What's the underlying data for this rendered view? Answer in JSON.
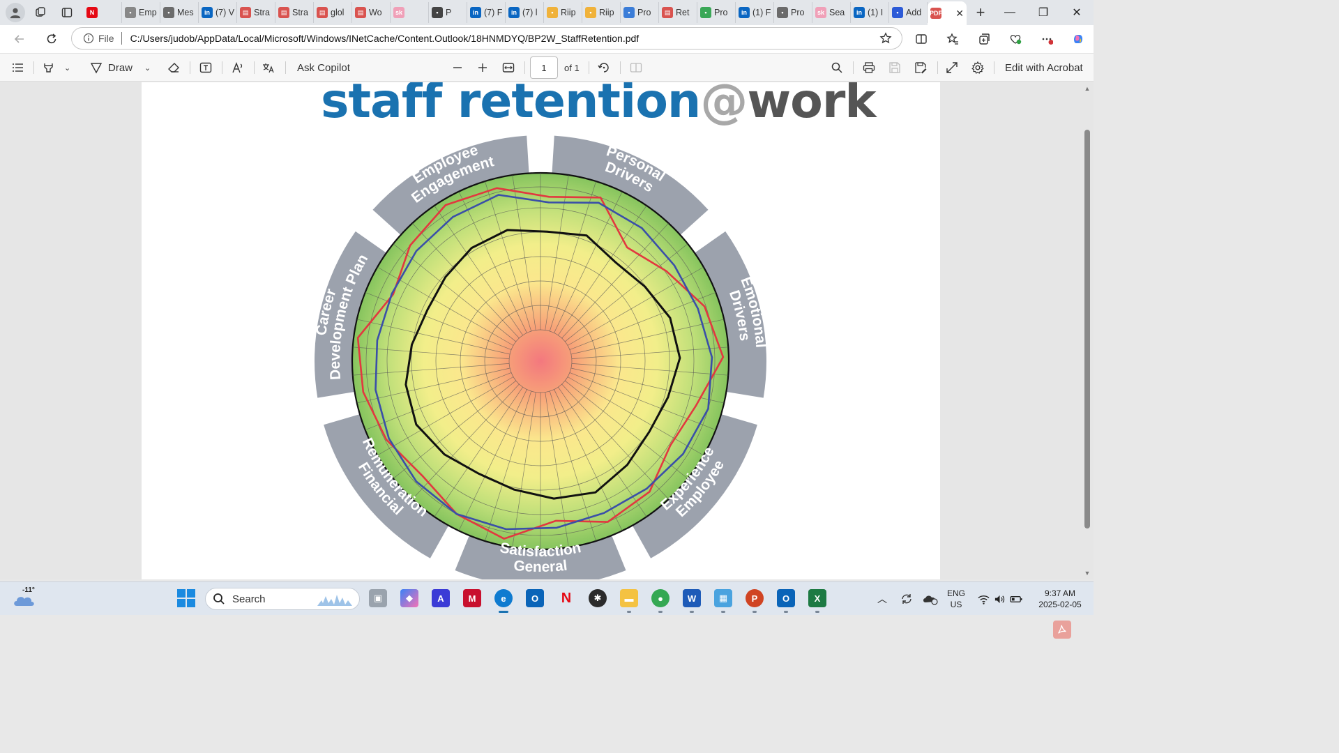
{
  "tabs": [
    {
      "label": "",
      "icon": "netflix-icon",
      "color": "#e50914"
    },
    {
      "label": "Emp",
      "icon": "chatgpt-icon",
      "color": "#888888"
    },
    {
      "label": "Mes",
      "icon": "gmail-icon",
      "color": "#6b6b6b"
    },
    {
      "label": "(7) V",
      "icon": "linkedin-icon",
      "color": "#0a66c2"
    },
    {
      "label": "Stra",
      "icon": "pdf-icon",
      "color": "#d9534f"
    },
    {
      "label": "Stra",
      "icon": "pdf-icon",
      "color": "#d9534f"
    },
    {
      "label": "glol",
      "icon": "pdf-icon",
      "color": "#d9534f"
    },
    {
      "label": "Wo",
      "icon": "pdf-icon",
      "color": "#d9534f"
    },
    {
      "label": "",
      "icon": "sk-icon",
      "color": "#f0a0b8"
    },
    {
      "label": "P",
      "icon": "p-icon",
      "color": "#444444"
    },
    {
      "label": "(7) F",
      "icon": "linkedin-icon",
      "color": "#0a66c2"
    },
    {
      "label": "(7) l",
      "icon": "linkedin-icon",
      "color": "#0a66c2"
    },
    {
      "label": "Riip",
      "icon": "riip-icon",
      "color": "#f0b23a"
    },
    {
      "label": "Riip",
      "icon": "riip-icon",
      "color": "#f0b23a"
    },
    {
      "label": "Pro",
      "icon": "bird-icon",
      "color": "#3b7dd8"
    },
    {
      "label": "Ret",
      "icon": "pdf-icon",
      "color": "#d9534f"
    },
    {
      "label": "Pro",
      "icon": "plus-green-icon",
      "color": "#3aa757"
    },
    {
      "label": "(1) F",
      "icon": "linkedin-icon",
      "color": "#0a66c2"
    },
    {
      "label": "Pro",
      "icon": "loop-icon",
      "color": "#6b6b6b"
    },
    {
      "label": "Sea",
      "icon": "sk-icon",
      "color": "#f0a0b8"
    },
    {
      "label": "(1) I",
      "icon": "linkedin-icon",
      "color": "#0a66c2"
    },
    {
      "label": "Add",
      "icon": "adobe-icon",
      "color": "#2d5bd7"
    }
  ],
  "active_tab": {
    "label": "",
    "icon": "pdf-icon",
    "color": "#d9534f"
  },
  "address": {
    "scheme_label": "File",
    "url": "C:/Users/judob/AppData/Local/Microsoft/Windows/INetCache/Content.Outlook/18HNMDYQ/BP2W_StaffRetention.pdf"
  },
  "toolbar": {
    "draw_label": "Draw",
    "copilot_label": "Ask Copilot",
    "page_value": "1",
    "page_of": "of 1",
    "acrobat_label": "Edit with Acrobat"
  },
  "document": {
    "title_part1": "staff retention",
    "title_at": "@",
    "title_work": "work",
    "segments": [
      {
        "label_line1": "Personal",
        "label_line2": "Drivers"
      },
      {
        "label_line1": "Emotional",
        "label_line2": "Drivers"
      },
      {
        "label_line1": "Employee",
        "label_line2": "Experience"
      },
      {
        "label_line1": "General",
        "label_line2": "Satisfaction"
      },
      {
        "label_line1": "Financial",
        "label_line2": "Remuneration"
      },
      {
        "label_line1": "Career",
        "label_line2": "Development Plan"
      },
      {
        "label_line1": "Employee",
        "label_line2": "Engagement"
      }
    ],
    "series": [
      {
        "color": "#e2383f"
      },
      {
        "color": "#3a4fa8"
      },
      {
        "color": "#111111"
      }
    ]
  },
  "taskbar": {
    "weather_temp": "-11°",
    "search_placeholder": "Search",
    "lang_line1": "ENG",
    "lang_line2": "US",
    "time": "9:37 AM",
    "date": "2025-02-05"
  }
}
